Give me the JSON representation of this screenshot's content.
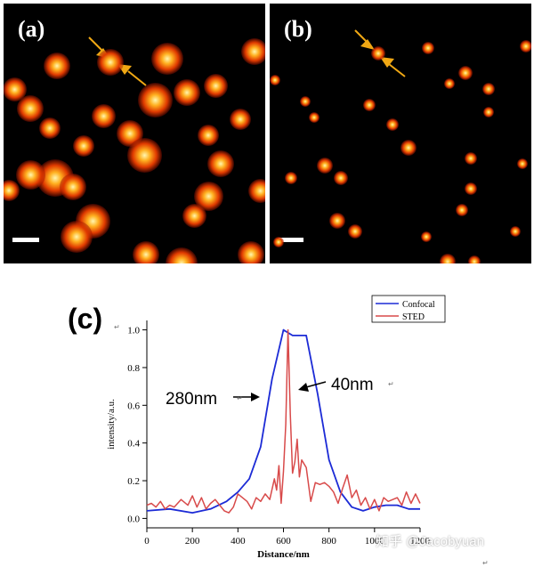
{
  "panels": {
    "a": {
      "label": "(a)"
    },
    "b": {
      "label": "(b)"
    },
    "c": {
      "label": "(c)"
    }
  },
  "colors": {
    "arrow": "#f0a814",
    "confocal": "#1c2bd6",
    "sted": "#d84a4a"
  },
  "annotations": {
    "confocal_fwhm": "280nm",
    "sted_fwhm": "40nm",
    "mark": "↵"
  },
  "watermark": "知乎 @Jacobyuan",
  "chart_data": {
    "type": "line",
    "title": "",
    "xlabel": "Distance/nm",
    "ylabel": "intensity/a.u.",
    "xlim": [
      0,
      1200
    ],
    "ylim": [
      -0.05,
      1.05
    ],
    "xticks": [
      0,
      200,
      400,
      600,
      800,
      1000,
      1200
    ],
    "yticks": [
      0.0,
      0.2,
      0.4,
      0.6,
      0.8,
      1.0
    ],
    "ytick_labels": [
      "0.0",
      "0.2",
      "0.4",
      "0.6",
      "0.8",
      "1.0"
    ],
    "legend": {
      "position": "top-right",
      "entries": [
        "Confocal",
        "STED"
      ]
    },
    "series": [
      {
        "name": "Confocal",
        "x": [
          0,
          100,
          200,
          280,
          350,
          400,
          450,
          500,
          550,
          600,
          640,
          700,
          750,
          800,
          850,
          900,
          950,
          1000,
          1050,
          1100,
          1150,
          1200
        ],
        "y": [
          0.04,
          0.05,
          0.03,
          0.05,
          0.09,
          0.14,
          0.21,
          0.38,
          0.74,
          1.0,
          0.97,
          0.97,
          0.66,
          0.31,
          0.14,
          0.06,
          0.04,
          0.06,
          0.07,
          0.07,
          0.05,
          0.05
        ]
      },
      {
        "name": "STED",
        "x": [
          0,
          20,
          40,
          60,
          80,
          100,
          120,
          150,
          180,
          200,
          220,
          240,
          260,
          280,
          300,
          320,
          340,
          360,
          380,
          400,
          420,
          440,
          460,
          480,
          500,
          520,
          540,
          560,
          570,
          580,
          590,
          600,
          610,
          620,
          630,
          640,
          650,
          660,
          670,
          680,
          700,
          720,
          740,
          760,
          780,
          800,
          820,
          840,
          860,
          880,
          900,
          920,
          940,
          960,
          980,
          1000,
          1020,
          1040,
          1060,
          1080,
          1100,
          1120,
          1140,
          1160,
          1180,
          1200
        ],
        "y": [
          0.07,
          0.08,
          0.06,
          0.09,
          0.05,
          0.07,
          0.06,
          0.1,
          0.07,
          0.12,
          0.06,
          0.11,
          0.05,
          0.08,
          0.1,
          0.07,
          0.04,
          0.03,
          0.06,
          0.13,
          0.11,
          0.09,
          0.05,
          0.11,
          0.09,
          0.13,
          0.1,
          0.21,
          0.15,
          0.28,
          0.08,
          0.25,
          0.5,
          1.0,
          0.55,
          0.24,
          0.3,
          0.42,
          0.22,
          0.31,
          0.27,
          0.09,
          0.19,
          0.18,
          0.19,
          0.17,
          0.14,
          0.08,
          0.16,
          0.23,
          0.11,
          0.15,
          0.07,
          0.11,
          0.05,
          0.1,
          0.04,
          0.11,
          0.09,
          0.1,
          0.11,
          0.07,
          0.14,
          0.08,
          0.13,
          0.08
        ]
      }
    ]
  }
}
